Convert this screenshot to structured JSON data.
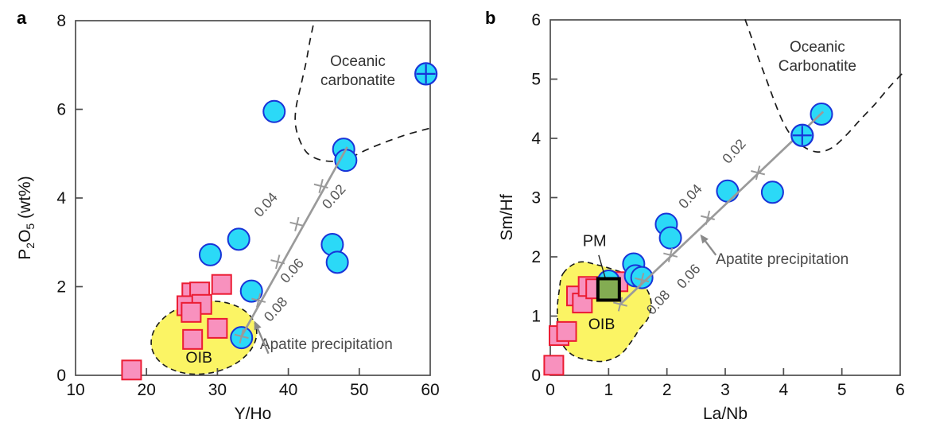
{
  "colors": {
    "circle_fill": "#2BD9F7",
    "circle_stroke": "#1834D8",
    "square_fill": "#F891BE",
    "square_stroke": "#EB1C33",
    "oib_fill": "#FBF464",
    "pm_fill": "#83AC52",
    "trend_gray": "#9A9A9A",
    "boundary_black": "#1A1A1A",
    "axis_color": "#4D4D4D",
    "annotation_gray": "#4A4A4A",
    "tick_label_color": "#111111",
    "trend_label_color": "#555555"
  },
  "chart_data": [
    {
      "id": "panel-a",
      "panel_label": "a",
      "type": "scatter",
      "xlabel": "Y/Ho",
      "ylabel": "P₂O₅ (wt%)",
      "ylabel_segments": [
        {
          "t": "P"
        },
        {
          "t": "2",
          "sub": true
        },
        {
          "t": "O"
        },
        {
          "t": "5",
          "sub": true
        },
        {
          "t": " (wt%)"
        }
      ],
      "xlim": [
        10,
        60
      ],
      "ylim": [
        0,
        8
      ],
      "xticks": [
        10,
        20,
        30,
        40,
        50,
        60
      ],
      "yticks": [
        0,
        2,
        4,
        6,
        8
      ],
      "grid": false,
      "series": [
        {
          "name": "carbonatite-hosted apatite",
          "marker": "circle",
          "points": [
            [
              38.0,
              5.95
            ],
            [
              47.8,
              5.1
            ],
            [
              48.1,
              4.85
            ],
            [
              46.2,
              2.95
            ],
            [
              46.9,
              2.55
            ],
            [
              33.0,
              3.07
            ],
            [
              29.0,
              2.72
            ],
            [
              34.8,
              1.9
            ],
            [
              33.4,
              0.85
            ]
          ]
        },
        {
          "name": "crossed circle sample",
          "marker": "circle-cross",
          "points": [
            [
              59.4,
              6.8
            ]
          ]
        },
        {
          "name": "OIB-type samples",
          "marker": "square",
          "points": [
            [
              26.4,
              1.86
            ],
            [
              27.5,
              1.88
            ],
            [
              30.6,
              2.05
            ],
            [
              25.7,
              1.57
            ],
            [
              27.8,
              1.6
            ],
            [
              26.3,
              1.42
            ],
            [
              30.0,
              1.06
            ],
            [
              26.5,
              0.81
            ],
            [
              17.9,
              0.12
            ]
          ]
        }
      ],
      "trend": {
        "name": "apatite precipitation trajectory",
        "line": [
          [
            33.4,
            0.88
          ],
          [
            48.3,
            5.15
          ]
        ],
        "ticks": [
          [
            33.4,
            0.88
          ],
          [
            35.8,
            1.69
          ],
          [
            38.5,
            2.56
          ],
          [
            41.2,
            3.41
          ],
          [
            44.6,
            4.27
          ]
        ],
        "tick_labels": [
          {
            "text": "0.08",
            "at": [
              38.7,
              1.42
            ]
          },
          {
            "text": "0.06",
            "at": [
              41.0,
              2.29
            ]
          },
          {
            "text": "0.04",
            "at": [
              37.3,
              3.78
            ]
          },
          {
            "text": "0.02",
            "at": [
              46.9,
              3.96
            ]
          }
        ]
      },
      "regions": {
        "oib": {
          "shape": "ellipse",
          "label": "OIB",
          "center": [
            28.1,
            0.85
          ],
          "rx": 7.5,
          "ry": 0.81,
          "rotate_deg": -10,
          "label_at": [
            27.4,
            0.29
          ]
        },
        "oceanic_carbonatite": {
          "label_lines": [
            "Oceanic",
            "carbonatite"
          ],
          "label_at": [
            49.8,
            6.98
          ],
          "boundary": [
            [
              43.5,
              7.89
            ],
            [
              43.0,
              7.51
            ],
            [
              42.5,
              7.06
            ],
            [
              41.8,
              6.56
            ],
            [
              41.1,
              6.05
            ],
            [
              41.0,
              5.66
            ],
            [
              41.6,
              5.3
            ],
            [
              42.7,
              5.01
            ],
            [
              44.5,
              4.86
            ],
            [
              46.7,
              4.83
            ],
            [
              48.8,
              4.92
            ],
            [
              51.2,
              5.1
            ],
            [
              54.0,
              5.28
            ],
            [
              56.9,
              5.44
            ],
            [
              60.3,
              5.59
            ]
          ]
        }
      },
      "annotation": {
        "text": "Apatite precipitation",
        "text_at": [
          36.0,
          0.59
        ],
        "arrow_from": [
          37.2,
          0.49
        ],
        "arrow_to": [
          35.2,
          1.23
        ]
      }
    },
    {
      "id": "panel-b",
      "panel_label": "b",
      "type": "scatter",
      "xlabel": "La/Nb",
      "ylabel": "Sm/Hf",
      "ylabel_segments": [
        {
          "t": "Sm/Hf"
        }
      ],
      "xlim": [
        0,
        6
      ],
      "ylim": [
        0,
        6
      ],
      "xticks": [
        0,
        1,
        2,
        3,
        4,
        5,
        6
      ],
      "yticks": [
        0,
        1,
        2,
        3,
        4,
        5,
        6
      ],
      "grid": false,
      "series": [
        {
          "name": "carbonatite-hosted apatite",
          "marker": "circle",
          "points": [
            [
              4.65,
              4.41
            ],
            [
              3.04,
              3.11
            ],
            [
              3.81,
              3.09
            ],
            [
              1.99,
              2.55
            ],
            [
              2.06,
              2.32
            ],
            [
              1.43,
              1.88
            ],
            [
              1.46,
              1.68
            ],
            [
              1.57,
              1.65
            ],
            [
              1.0,
              1.59
            ]
          ]
        },
        {
          "name": "crossed circle sample",
          "marker": "circle-cross",
          "points": [
            [
              4.32,
              4.05
            ]
          ]
        },
        {
          "name": "OIB-type samples",
          "marker": "square",
          "points": [
            [
              0.06,
              0.17
            ],
            [
              0.15,
              0.67
            ],
            [
              0.28,
              0.74
            ],
            [
              0.45,
              1.34
            ],
            [
              0.55,
              1.22
            ],
            [
              0.65,
              1.5
            ],
            [
              0.78,
              1.46
            ],
            [
              1.16,
              1.58
            ]
          ]
        },
        {
          "name": "PM primitive mantle",
          "marker": "pm-square",
          "label": "PM",
          "points": [
            [
              1.0,
              1.45
            ]
          ],
          "label_at": [
            0.76,
            2.18
          ],
          "leader": [
            [
              0.83,
              2.03
            ],
            [
              0.95,
              1.62
            ]
          ]
        }
      ],
      "trend": {
        "name": "apatite precipitation trajectory",
        "line": [
          [
            1.2,
            1.2
          ],
          [
            4.68,
            4.45
          ]
        ],
        "ticks": [
          [
            1.2,
            1.2
          ],
          [
            1.57,
            1.61
          ],
          [
            2.06,
            2.03
          ],
          [
            2.7,
            2.66
          ],
          [
            3.56,
            3.42
          ]
        ],
        "tick_labels": [
          {
            "text": "0.08",
            "at": [
              1.91,
              1.18
            ]
          },
          {
            "text": "0.06",
            "at": [
              2.43,
              1.62
            ]
          },
          {
            "text": "0.04",
            "at": [
              2.46,
              2.97
            ]
          },
          {
            "text": "0.02",
            "at": [
              3.21,
              3.73
            ]
          }
        ]
      },
      "regions": {
        "oib": {
          "shape": "blob",
          "label": "OIB",
          "points": [
            [
              0.22,
              1.72
            ],
            [
              0.49,
              1.91
            ],
            [
              0.82,
              1.86
            ],
            [
              1.13,
              1.77
            ],
            [
              1.45,
              1.65
            ],
            [
              1.65,
              1.46
            ],
            [
              1.73,
              1.22
            ],
            [
              1.68,
              0.97
            ],
            [
              1.53,
              0.78
            ],
            [
              1.39,
              0.57
            ],
            [
              1.2,
              0.35
            ],
            [
              0.93,
              0.24
            ],
            [
              0.63,
              0.26
            ],
            [
              0.37,
              0.35
            ],
            [
              0.2,
              0.54
            ],
            [
              0.14,
              0.81
            ],
            [
              0.12,
              1.11
            ],
            [
              0.15,
              1.41
            ]
          ],
          "label_at": [
            0.88,
            0.78
          ]
        },
        "oceanic_carbonatite": {
          "label_lines": [
            "Oceanic",
            "Carbonatite"
          ],
          "label_at": [
            4.58,
            5.46
          ],
          "boundary": [
            [
              3.34,
              6.01
            ],
            [
              3.44,
              5.73
            ],
            [
              3.56,
              5.38
            ],
            [
              3.7,
              5.01
            ],
            [
              3.83,
              4.66
            ],
            [
              3.97,
              4.32
            ],
            [
              4.13,
              4.05
            ],
            [
              4.34,
              3.86
            ],
            [
              4.58,
              3.77
            ],
            [
              4.83,
              3.84
            ],
            [
              5.07,
              4.05
            ],
            [
              5.32,
              4.32
            ],
            [
              5.57,
              4.58
            ],
            [
              5.81,
              4.86
            ],
            [
              6.03,
              5.09
            ]
          ]
        }
      },
      "annotation": {
        "text": "Apatite precipitation",
        "text_at": [
          2.84,
          1.88
        ],
        "arrow_from": [
          2.84,
          2.03
        ],
        "arrow_to": [
          2.57,
          2.38
        ]
      }
    }
  ]
}
